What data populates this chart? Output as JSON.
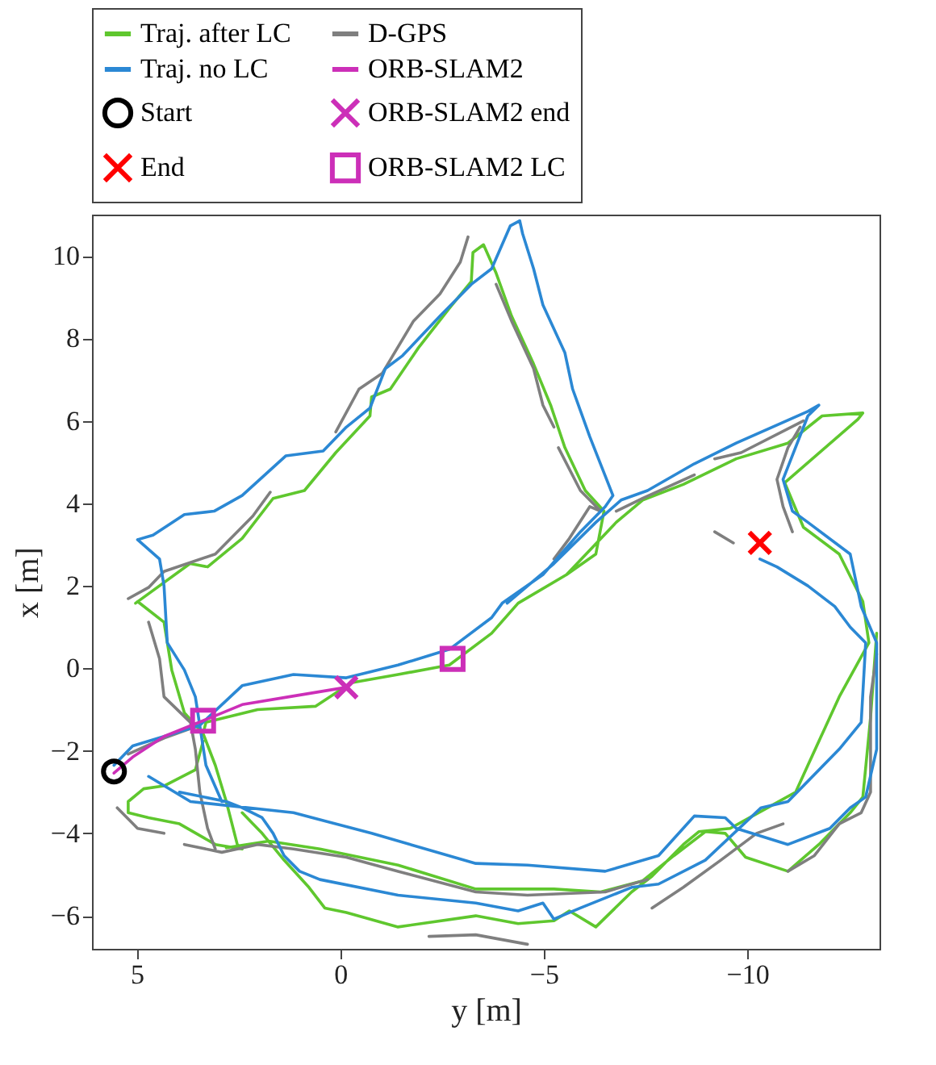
{
  "chart_data": {
    "type": "line",
    "xlabel": "y [m]",
    "ylabel": "x [m]",
    "xlim": [
      6.1,
      -13.25
    ],
    "ylim": [
      -6.8,
      11
    ],
    "xticks": [
      5,
      0,
      -5,
      -10
    ],
    "yticks": [
      -6,
      -4,
      -2,
      0,
      2,
      4,
      6,
      8,
      10
    ],
    "grid": false,
    "legend": "top",
    "series": [
      {
        "name": "Traj. after LC",
        "color": "#5fc72e",
        "x": [
          5.03,
          3.69,
          3.26,
          2.41,
          1.65,
          0.88,
          0.11,
          -0.73,
          -0.77,
          -1.23,
          -1.92,
          -2.68,
          -3.22,
          -3.26,
          -3.52,
          -3.83,
          -4.21,
          -4.75,
          -5.17,
          -5.52,
          -6.02,
          -6.48,
          -6.28,
          -5.56,
          -4.37,
          -3.72,
          -2.68,
          -1.42,
          -0.27,
          0.61,
          2.03,
          3.3,
          3.37,
          3.07,
          2.8,
          2.53,
          2.41,
          null,
          -5.56,
          -6.78,
          -7.43,
          -8.43,
          -9.73,
          -11.0,
          -11.84,
          -12.84,
          -12.72,
          -10.92,
          -11.38,
          -12.26,
          -12.84,
          -12.99,
          -12.26,
          -11.49,
          -11.19,
          -10.5,
          -9.58,
          -8.81,
          -8.43,
          -7.66,
          -7.16,
          -6.28,
          -5.63,
          -5.25,
          -4.37,
          -3.33,
          -1.42,
          -0.15,
          0.38,
          0.77,
          1.38,
          1.92,
          2.41,
          null,
          -13.18,
          -13.03,
          -12.84,
          -12.53,
          -11.76,
          -11.0,
          -9.96,
          -9.46,
          -8.97,
          -8.2,
          -7.43,
          -6.4,
          -5.25,
          -3.33,
          -1.42,
          0.5,
          1.76,
          2.8,
          null,
          3.37,
          3.56,
          4.33,
          4.83,
          5.21,
          5.21,
          4.71,
          3.95,
          3.07,
          2.41,
          null,
          4.98,
          4.33,
          4.14,
          3.83,
          3.37
        ],
        "values": [
          1.58,
          2.54,
          2.46,
          3.15,
          4.12,
          4.31,
          5.23,
          6.12,
          6.58,
          6.77,
          7.77,
          8.73,
          9.38,
          10.08,
          10.27,
          9.58,
          8.54,
          7.38,
          6.38,
          5.35,
          4.31,
          3.81,
          2.77,
          2.27,
          1.58,
          0.85,
          0.08,
          -0.15,
          -0.35,
          -0.92,
          -1.0,
          -1.31,
          -1.58,
          -2.35,
          -3.23,
          -4.27,
          -4.38,
          null,
          2.27,
          3.54,
          4.08,
          4.46,
          5.08,
          5.46,
          6.12,
          6.19,
          6.04,
          4.5,
          3.42,
          2.77,
          1.62,
          0.62,
          -0.69,
          -2.35,
          -3.0,
          -3.38,
          -3.88,
          -3.96,
          -4.27,
          -5.04,
          -5.42,
          -6.27,
          -5.88,
          -6.12,
          -6.19,
          -6.0,
          -6.27,
          -5.92,
          -5.81,
          -5.31,
          -4.65,
          -4.0,
          -3.5,
          null,
          0.85,
          -1.19,
          -3.12,
          -3.5,
          -4.27,
          -4.92,
          -4.58,
          -4.0,
          -3.96,
          -4.54,
          -5.15,
          -5.42,
          -5.35,
          -5.35,
          -4.77,
          -4.38,
          -4.19,
          -4.35,
          null,
          -1.77,
          -2.46,
          -2.85,
          -2.92,
          -3.23,
          -3.5,
          -3.62,
          -3.77,
          -4.27,
          -4.38,
          null,
          1.62,
          1.12,
          -0.04,
          -1.08,
          -1.58
        ]
      },
      {
        "name": "D-GPS",
        "color": "#7f7f7f",
        "x": [
          5.21,
          4.71,
          4.33,
          3.07,
          2.15,
          1.72,
          null,
          0.11,
          -0.46,
          -1.03,
          -1.8,
          -2.45,
          -2.95,
          -3.14,
          null,
          -3.83,
          -4.21,
          -4.75,
          -4.98,
          -5.25,
          null,
          -5.36,
          -5.9,
          -6.4,
          -6.13,
          -5.63,
          -5.25,
          null,
          -11.38,
          -9.85,
          -9.2,
          null,
          -8.7,
          -7.43,
          -6.78,
          null,
          -11.3,
          -11.0,
          -10.73,
          -10.88,
          -11.11,
          null,
          -9.2,
          -9.66,
          null,
          -13.18,
          -13.03,
          -13.03,
          -13.03,
          -12.8,
          -12.26,
          -11.65,
          -11.0,
          null,
          -10.88,
          -10.23,
          -9.35,
          -8.43,
          -7.66,
          null,
          -7.55,
          -6.51,
          -4.6,
          -3.33,
          -1.42,
          -0.15,
          1.15,
          2.03,
          2.91,
          3.83,
          null,
          4.71,
          4.44,
          4.33,
          3.68,
          3.56,
          3.45,
          3.26,
          3.07,
          null,
          5.48,
          4.98,
          4.33,
          null,
          -2.18,
          -3.33,
          -4.6,
          null,
          5.21,
          4.33,
          3.45
        ],
        "values": [
          1.69,
          1.96,
          2.35,
          2.77,
          3.69,
          4.27,
          null,
          5.73,
          6.77,
          7.15,
          8.42,
          9.08,
          9.85,
          10.46,
          null,
          9.31,
          8.42,
          7.27,
          6.38,
          5.85,
          null,
          5.35,
          4.31,
          3.81,
          3.92,
          3.15,
          2.65,
          null,
          6.0,
          5.23,
          5.08,
          null,
          4.69,
          4.12,
          3.81,
          null,
          5.85,
          5.35,
          4.58,
          3.92,
          3.31,
          null,
          3.31,
          3.04,
          null,
          0.35,
          -0.69,
          -1.96,
          -3.0,
          -3.5,
          -3.77,
          -4.54,
          -4.92,
          null,
          -3.77,
          -4.0,
          -4.65,
          -5.31,
          -5.81,
          null,
          -5.12,
          -5.42,
          -5.5,
          -5.42,
          -4.92,
          -4.58,
          -4.38,
          -4.27,
          -4.46,
          -4.27,
          null,
          1.12,
          0.23,
          -0.69,
          -1.31,
          -1.96,
          -3.0,
          -3.88,
          -4.38,
          null,
          -3.38,
          -3.88,
          -4.0,
          null,
          -6.5,
          -6.46,
          -6.69,
          null,
          -2.08,
          -1.69,
          -1.38
        ]
      },
      {
        "name": "Traj. no LC",
        "color": "#2b88d4",
        "x": [
          4.98,
          4.6,
          3.83,
          3.1,
          2.41,
          1.34,
          0.42,
          -0.15,
          -0.73,
          -1.11,
          -1.53,
          -2.45,
          -3.22,
          -3.72,
          -4.18,
          -4.41,
          -4.48,
          -4.75,
          -4.98,
          -5.52,
          -5.71,
          -6.13,
          -6.7,
          -6.51,
          -5.9,
          -4.98,
          -3.98,
          -3.72,
          -2.68,
          -1.42,
          -0.15,
          1.15,
          2.41,
          3.45,
          4.33,
          5.1,
          5.56,
          null,
          -4.1,
          -5.25,
          -6.28,
          -6.9,
          -7.55,
          -8.7,
          -9.73,
          -11.49,
          -11.76,
          -11.49,
          -10.88,
          -11.11,
          -11.49,
          -12.53,
          -12.8,
          -13.18,
          -13.18,
          -13.18,
          -12.91,
          -12.53,
          -12.03,
          -11.0,
          -9.73,
          -9.46,
          -8.7,
          -7.82,
          -6.51,
          -4.6,
          -3.33,
          -0.77,
          1.15,
          3.68,
          4.71,
          null,
          -10.31,
          -10.73,
          -11.49,
          -12.15,
          -12.53,
          -12.91,
          -12.8,
          -12.26,
          -11.0,
          -10.34,
          -8.97,
          -7.82,
          -7.16,
          -5.9,
          -5.25,
          -4.98,
          -4.37,
          -3.33,
          -1.42,
          0.5,
          1.0,
          1.38,
          1.65,
          1.92,
          2.41,
          2.8,
          3.95,
          null,
          4.98,
          4.44,
          4.33,
          4.25,
          3.83,
          3.56,
          3.3,
          2.91
        ],
        "values": [
          3.12,
          3.23,
          3.73,
          3.81,
          4.19,
          5.15,
          5.27,
          5.85,
          6.31,
          7.27,
          7.58,
          8.54,
          9.31,
          9.69,
          10.73,
          10.85,
          10.54,
          9.69,
          8.81,
          7.65,
          6.77,
          5.62,
          4.19,
          3.92,
          3.31,
          2.27,
          1.58,
          1.23,
          0.46,
          0.08,
          -0.23,
          -0.15,
          -0.42,
          -1.38,
          -1.65,
          -1.88,
          -2.35,
          null,
          1.58,
          2.54,
          3.54,
          4.08,
          4.31,
          4.96,
          5.46,
          6.23,
          6.38,
          6.12,
          4.58,
          3.81,
          3.54,
          2.77,
          1.5,
          0.62,
          -0.69,
          -1.96,
          -3.12,
          -3.38,
          -3.88,
          -4.27,
          -3.88,
          -3.62,
          -3.58,
          -4.54,
          -4.92,
          -4.77,
          -4.73,
          -4.0,
          -3.5,
          -3.23,
          -2.62,
          null,
          2.65,
          2.46,
          2.0,
          1.5,
          1.0,
          0.62,
          -1.31,
          -1.96,
          -3.23,
          -3.38,
          -4.65,
          -5.23,
          -5.31,
          -5.81,
          -6.08,
          -5.69,
          -5.88,
          -5.69,
          -5.5,
          -5.12,
          -4.92,
          -4.54,
          -4.0,
          -3.62,
          -3.38,
          -3.23,
          -3.0,
          null,
          3.12,
          2.65,
          2.0,
          0.62,
          -0.04,
          -0.69,
          -2.35,
          -3.23
        ]
      },
      {
        "name": "ORB-SLAM2",
        "color": "#cc2fb8",
        "x": [
          5.56,
          5.1,
          4.33,
          3.37,
          2.41,
          1.26,
          -0.15
        ],
        "values": [
          -2.54,
          -2.15,
          -1.65,
          -1.27,
          -0.88,
          -0.69,
          -0.46
        ]
      },
      {
        "name": "Start",
        "color": "#000000",
        "type": "scatter",
        "marker": "circle",
        "x": [
          5.56
        ],
        "values": [
          -2.5
        ]
      },
      {
        "name": "ORB-SLAM2 end",
        "color": "#cc2fb8",
        "type": "scatter",
        "marker": "cross",
        "x": [
          -0.15
        ],
        "values": [
          -0.46
        ]
      },
      {
        "name": "End",
        "color": "#ff0000",
        "type": "scatter",
        "marker": "cross",
        "x": [
          -10.31
        ],
        "values": [
          3.04
        ]
      },
      {
        "name": "ORB-SLAM2 LC",
        "color": "#cc2fb8",
        "type": "scatter",
        "marker": "square",
        "x": [
          3.37,
          -2.76
        ],
        "values": [
          -1.27,
          0.23
        ]
      }
    ]
  }
}
